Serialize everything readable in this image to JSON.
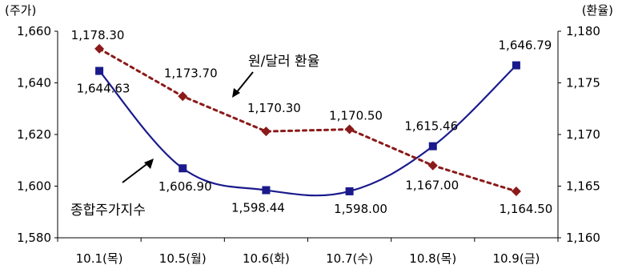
{
  "chart_data": {
    "type": "line",
    "x": [
      "10.1(목)",
      "10.5(월)",
      "10.6(화)",
      "10.7(수)",
      "10.8(목)",
      "10.9(금)"
    ],
    "left_axis": {
      "label": "(주가)",
      "ylim": [
        1580,
        1660
      ],
      "ticks": [
        "1,580",
        "1,600",
        "1,620",
        "1,640",
        "1,660"
      ]
    },
    "right_axis": {
      "label": "(환율)",
      "ylim": [
        1160,
        1180
      ],
      "ticks": [
        "1,160",
        "1,165",
        "1,170",
        "1,175",
        "1,180"
      ]
    },
    "series": [
      {
        "name": "종합주가지수",
        "axis": "left",
        "color": "#1a1a8c",
        "style": "solid",
        "marker": "square",
        "values": [
          1644.63,
          1606.9,
          1598.44,
          1598.0,
          1615.46,
          1646.79
        ],
        "labels": [
          "1,644.63",
          "1,606.90",
          "1,598.44",
          "1,598.00",
          "1,615.46",
          "1,646.79"
        ]
      },
      {
        "name": "원/달러 환율",
        "axis": "right",
        "color": "#8b1a1a",
        "style": "dotted",
        "marker": "diamond",
        "values": [
          1178.3,
          1173.7,
          1170.3,
          1170.5,
          1167.0,
          1164.5
        ],
        "labels": [
          "1,178.30",
          "1,173.70",
          "1,170.30",
          "1,170.50",
          "1,167.00",
          "1,164.50"
        ]
      }
    ],
    "grid": false
  }
}
